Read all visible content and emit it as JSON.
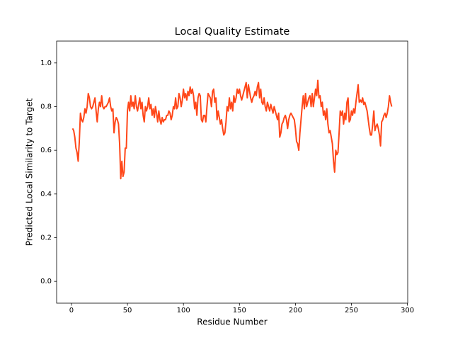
{
  "chart_data": {
    "type": "line",
    "title": "Local Quality Estimate",
    "xlabel": "Residue Number",
    "ylabel": "Predicted Local Similarity to Target",
    "xlim": [
      -13.25,
      300.25
    ],
    "ylim": [
      -0.1,
      1.1
    ],
    "xticks": [
      0,
      50,
      100,
      150,
      200,
      250,
      300
    ],
    "yticks": [
      {
        "value": 0,
        "label": "0.0"
      },
      0.2,
      0.4,
      0.6,
      0.8,
      {
        "value": 1,
        "label": "1.0"
      }
    ],
    "x": [
      1,
      2,
      3,
      4,
      5,
      6,
      7,
      8,
      9,
      10,
      11,
      12,
      13,
      14,
      15,
      16,
      17,
      18,
      19,
      20,
      21,
      22,
      23,
      24,
      25,
      26,
      27,
      28,
      29,
      30,
      31,
      32,
      33,
      34,
      35,
      36,
      37,
      38,
      39,
      40,
      41,
      42,
      43,
      44,
      45,
      46,
      47,
      48,
      49,
      50,
      51,
      52,
      53,
      54,
      55,
      56,
      57,
      58,
      59,
      60,
      61,
      62,
      63,
      64,
      65,
      66,
      67,
      68,
      69,
      70,
      71,
      72,
      73,
      74,
      75,
      76,
      77,
      78,
      79,
      80,
      81,
      82,
      83,
      84,
      85,
      86,
      87,
      88,
      89,
      90,
      91,
      92,
      93,
      94,
      95,
      96,
      97,
      98,
      99,
      100,
      101,
      102,
      103,
      104,
      105,
      106,
      107,
      108,
      109,
      110,
      111,
      112,
      113,
      114,
      115,
      116,
      117,
      118,
      119,
      120,
      121,
      122,
      123,
      124,
      125,
      126,
      127,
      128,
      129,
      130,
      131,
      132,
      133,
      134,
      135,
      136,
      137,
      138,
      139,
      140,
      141,
      142,
      143,
      144,
      145,
      146,
      147,
      148,
      149,
      150,
      151,
      152,
      153,
      154,
      155,
      156,
      157,
      158,
      159,
      160,
      161,
      162,
      163,
      164,
      165,
      166,
      167,
      168,
      169,
      170,
      171,
      172,
      173,
      174,
      175,
      176,
      177,
      178,
      179,
      180,
      181,
      182,
      183,
      184,
      185,
      186,
      187,
      188,
      189,
      190,
      191,
      192,
      193,
      194,
      195,
      196,
      197,
      198,
      199,
      200,
      201,
      202,
      203,
      204,
      205,
      206,
      207,
      208,
      209,
      210,
      211,
      212,
      213,
      214,
      215,
      216,
      217,
      218,
      219,
      220,
      221,
      222,
      223,
      224,
      225,
      226,
      227,
      228,
      229,
      230,
      231,
      232,
      233,
      234,
      235,
      236,
      237,
      238,
      239,
      240,
      241,
      242,
      243,
      244,
      245,
      246,
      247,
      248,
      249,
      250,
      251,
      252,
      253,
      254,
      255,
      256,
      257,
      258,
      259,
      260,
      261,
      262,
      263,
      264,
      265,
      266,
      267,
      268,
      269,
      270,
      271,
      272,
      273,
      274,
      275,
      276,
      277,
      278,
      279,
      280,
      281,
      282,
      283,
      284,
      285,
      286
    ],
    "series": [
      {
        "color": "#ff4719",
        "values": [
          0.7,
          0.69,
          0.66,
          0.61,
          0.59,
          0.55,
          0.64,
          0.77,
          0.74,
          0.73,
          0.75,
          0.79,
          0.77,
          0.8,
          0.86,
          0.84,
          0.8,
          0.79,
          0.8,
          0.82,
          0.84,
          0.78,
          0.73,
          0.79,
          0.82,
          0.8,
          0.85,
          0.8,
          0.79,
          0.8,
          0.8,
          0.81,
          0.82,
          0.84,
          0.8,
          0.78,
          0.79,
          0.68,
          0.73,
          0.75,
          0.74,
          0.72,
          0.63,
          0.47,
          0.55,
          0.48,
          0.5,
          0.61,
          0.61,
          0.78,
          0.82,
          0.78,
          0.85,
          0.8,
          0.82,
          0.79,
          0.85,
          0.8,
          0.78,
          0.81,
          0.84,
          0.79,
          0.82,
          0.76,
          0.73,
          0.8,
          0.78,
          0.8,
          0.84,
          0.79,
          0.81,
          0.76,
          0.79,
          0.75,
          0.8,
          0.77,
          0.73,
          0.78,
          0.74,
          0.72,
          0.75,
          0.73,
          0.74,
          0.74,
          0.76,
          0.76,
          0.78,
          0.77,
          0.74,
          0.76,
          0.8,
          0.79,
          0.84,
          0.79,
          0.8,
          0.86,
          0.84,
          0.8,
          0.83,
          0.88,
          0.84,
          0.86,
          0.83,
          0.87,
          0.85,
          0.89,
          0.86,
          0.88,
          0.85,
          0.79,
          0.82,
          0.76,
          0.84,
          0.86,
          0.85,
          0.74,
          0.73,
          0.76,
          0.76,
          0.73,
          0.8,
          0.86,
          0.85,
          0.84,
          0.8,
          0.87,
          0.88,
          0.82,
          0.84,
          0.74,
          0.78,
          0.75,
          0.72,
          0.74,
          0.7,
          0.67,
          0.68,
          0.73,
          0.8,
          0.78,
          0.84,
          0.79,
          0.82,
          0.78,
          0.85,
          0.82,
          0.84,
          0.88,
          0.86,
          0.88,
          0.85,
          0.83,
          0.85,
          0.87,
          0.89,
          0.91,
          0.84,
          0.9,
          0.87,
          0.84,
          0.82,
          0.84,
          0.85,
          0.87,
          0.85,
          0.89,
          0.91,
          0.84,
          0.88,
          0.82,
          0.81,
          0.84,
          0.8,
          0.78,
          0.82,
          0.8,
          0.78,
          0.81,
          0.79,
          0.77,
          0.8,
          0.78,
          0.76,
          0.74,
          0.77,
          0.66,
          0.68,
          0.72,
          0.73,
          0.75,
          0.76,
          0.74,
          0.7,
          0.74,
          0.76,
          0.77,
          0.76,
          0.75,
          0.74,
          0.7,
          0.64,
          0.63,
          0.6,
          0.68,
          0.74,
          0.8,
          0.85,
          0.79,
          0.86,
          0.8,
          0.82,
          0.84,
          0.85,
          0.8,
          0.86,
          0.8,
          0.84,
          0.88,
          0.85,
          0.92,
          0.84,
          0.85,
          0.8,
          0.82,
          0.76,
          0.78,
          0.74,
          0.79,
          0.72,
          0.68,
          0.69,
          0.66,
          0.63,
          0.55,
          0.5,
          0.6,
          0.58,
          0.59,
          0.68,
          0.78,
          0.76,
          0.78,
          0.72,
          0.77,
          0.74,
          0.82,
          0.84,
          0.73,
          0.74,
          0.78,
          0.76,
          0.79,
          0.77,
          0.82,
          0.86,
          0.9,
          0.82,
          0.83,
          0.82,
          0.84,
          0.81,
          0.82,
          0.8,
          0.78,
          0.74,
          0.7,
          0.67,
          0.67,
          0.72,
          0.78,
          0.69,
          0.71,
          0.72,
          0.7,
          0.67,
          0.62,
          0.73,
          0.74,
          0.76,
          0.77,
          0.75,
          0.77,
          0.8,
          0.85,
          0.82,
          0.8
        ]
      }
    ]
  }
}
